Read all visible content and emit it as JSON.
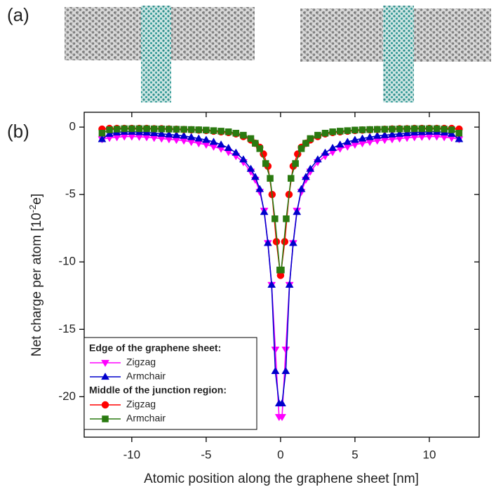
{
  "figure_labels": [
    "(a)",
    "(b)"
  ],
  "chart_data": {
    "type": "line",
    "xlabel": "Atomic position along the graphene sheet [nm]",
    "ylabel": {
      "before": "Net charge per atom [10",
      "sup": "-2",
      "after": "e]"
    },
    "xlim": [
      -13.2,
      13.35
    ],
    "ylim": [
      -23,
      1.1
    ],
    "xticks": [
      -10,
      -5,
      0,
      5,
      10
    ],
    "yticks": [
      0,
      -5,
      -10,
      -15,
      -20
    ],
    "grid": false,
    "legend": "lower left",
    "series_groups": [
      {
        "title": "Edge of the graphene sheet:",
        "series": [
          {
            "name": "Zigzag",
            "color": "#ff00ff",
            "marker": "triangle-down",
            "x": [
              -12,
              -11.5,
              -11,
              -10.5,
              -10,
              -9.5,
              -9,
              -8.5,
              -8,
              -7.5,
              -7,
              -6.5,
              -6,
              -5.5,
              -5,
              -4.5,
              -4,
              -3.5,
              -3,
              -2.5,
              -2,
              -1.7,
              -1.4,
              -1.1,
              -0.85,
              -0.6,
              -0.35,
              -0.1,
              0.1,
              0.35,
              0.6,
              0.85,
              1.1,
              1.4,
              1.7,
              2,
              2.5,
              3,
              3.5,
              4,
              4.5,
              5,
              5.5,
              6,
              6.5,
              7,
              7.5,
              8,
              8.5,
              9,
              9.5,
              10,
              10.5,
              11,
              11.5,
              12
            ],
            "values": [
              -0.9,
              -0.8,
              -0.75,
              -0.7,
              -0.7,
              -0.72,
              -0.75,
              -0.8,
              -0.85,
              -0.9,
              -0.95,
              -1.0,
              -1.1,
              -1.2,
              -1.3,
              -1.45,
              -1.6,
              -1.85,
              -2.15,
              -2.6,
              -3.3,
              -3.9,
              -4.8,
              -6.2,
              -8.6,
              -11.7,
              -16.5,
              -21.5,
              -21.5,
              -16.5,
              -11.7,
              -8.6,
              -6.2,
              -4.8,
              -3.9,
              -3.3,
              -2.6,
              -2.15,
              -1.85,
              -1.6,
              -1.45,
              -1.3,
              -1.2,
              -1.1,
              -1.0,
              -0.95,
              -0.9,
              -0.85,
              -0.8,
              -0.75,
              -0.72,
              -0.7,
              -0.7,
              -0.75,
              -0.8,
              -0.9
            ]
          },
          {
            "name": "Armchair",
            "color": "#0000cc",
            "marker": "triangle-up",
            "x": [
              -12,
              -11.5,
              -11,
              -10.5,
              -10,
              -9.5,
              -9,
              -8.5,
              -8,
              -7.5,
              -7,
              -6.5,
              -6,
              -5.5,
              -5,
              -4.5,
              -4,
              -3.5,
              -3,
              -2.5,
              -2,
              -1.7,
              -1.4,
              -1.1,
              -0.85,
              -0.6,
              -0.35,
              -0.1,
              0.1,
              0.35,
              0.6,
              0.85,
              1.1,
              1.4,
              1.7,
              2,
              2.5,
              3,
              3.5,
              4,
              4.5,
              5,
              5.5,
              6,
              6.5,
              7,
              7.5,
              8,
              8.5,
              9,
              9.5,
              10,
              10.5,
              11,
              11.5,
              12
            ],
            "values": [
              -0.9,
              -0.5,
              -0.4,
              -0.35,
              -0.35,
              -0.38,
              -0.4,
              -0.45,
              -0.5,
              -0.55,
              -0.6,
              -0.65,
              -0.75,
              -0.85,
              -0.95,
              -1.1,
              -1.3,
              -1.55,
              -1.9,
              -2.4,
              -3.1,
              -3.7,
              -4.6,
              -6.3,
              -8.6,
              -11.7,
              -18.1,
              -20.5,
              -20.5,
              -18.1,
              -11.7,
              -8.6,
              -6.3,
              -4.6,
              -3.7,
              -3.1,
              -2.4,
              -1.9,
              -1.55,
              -1.3,
              -1.1,
              -0.95,
              -0.85,
              -0.75,
              -0.65,
              -0.6,
              -0.55,
              -0.5,
              -0.45,
              -0.4,
              -0.38,
              -0.35,
              -0.35,
              -0.4,
              -0.5,
              -0.9
            ]
          }
        ]
      },
      {
        "title": "Middle of the junction region:",
        "series": [
          {
            "name": "Zigzag",
            "color": "#ff0000",
            "marker": "circle",
            "x": [
              -12,
              -11.5,
              -11,
              -10.5,
              -10,
              -9.5,
              -9,
              -8.5,
              -8,
              -7.5,
              -7,
              -6.5,
              -6,
              -5.5,
              -5,
              -4.5,
              -4,
              -3.5,
              -3,
              -2.5,
              -2,
              -1.7,
              -1.4,
              -1.15,
              -0.85,
              -0.57,
              -0.28,
              0,
              0.28,
              0.57,
              0.85,
              1.15,
              1.4,
              1.7,
              2,
              2.5,
              3,
              3.5,
              4,
              4.5,
              5,
              5.5,
              6,
              6.5,
              7,
              7.5,
              8,
              8.5,
              9,
              9.5,
              10,
              10.5,
              11,
              11.5,
              12
            ],
            "values": [
              -0.15,
              -0.1,
              -0.1,
              -0.1,
              -0.1,
              -0.1,
              -0.1,
              -0.12,
              -0.12,
              -0.14,
              -0.16,
              -0.18,
              -0.2,
              -0.22,
              -0.25,
              -0.3,
              -0.35,
              -0.4,
              -0.5,
              -0.7,
              -0.95,
              -1.2,
              -1.5,
              -2.0,
              -2.9,
              -5.0,
              -8.5,
              -11,
              -8.5,
              -5.0,
              -2.9,
              -2.0,
              -1.5,
              -1.2,
              -0.95,
              -0.7,
              -0.5,
              -0.4,
              -0.35,
              -0.3,
              -0.25,
              -0.22,
              -0.2,
              -0.18,
              -0.16,
              -0.14,
              -0.12,
              -0.12,
              -0.1,
              -0.1,
              -0.1,
              -0.1,
              -0.1,
              -0.1,
              -0.15
            ]
          },
          {
            "name": "Armchair",
            "color": "#2a7a10",
            "marker": "square",
            "x": [
              -12,
              -11.5,
              -11,
              -10.5,
              -10,
              -9.5,
              -9,
              -8.5,
              -8,
              -7.5,
              -7,
              -6.5,
              -6,
              -5.5,
              -5,
              -4.5,
              -4,
              -3.5,
              -3,
              -2.5,
              -2,
              -1.7,
              -1.4,
              -1.0,
              -0.7,
              -0.38,
              -0.05,
              0.05,
              0.38,
              0.7,
              1.0,
              1.4,
              1.7,
              2,
              2.5,
              3,
              3.5,
              4,
              4.5,
              5,
              5.5,
              6,
              6.5,
              7,
              7.5,
              8,
              8.5,
              9,
              9.5,
              10,
              10.5,
              11,
              11.5,
              12
            ],
            "values": [
              -0.45,
              -0.2,
              -0.15,
              -0.12,
              -0.12,
              -0.12,
              -0.12,
              -0.13,
              -0.14,
              -0.15,
              -0.16,
              -0.17,
              -0.18,
              -0.2,
              -0.22,
              -0.26,
              -0.3,
              -0.35,
              -0.45,
              -0.6,
              -0.85,
              -1.2,
              -1.6,
              -2.7,
              -3.8,
              -6.8,
              -10.6,
              -10.6,
              -6.8,
              -3.8,
              -2.7,
              -1.6,
              -1.2,
              -0.85,
              -0.6,
              -0.45,
              -0.35,
              -0.3,
              -0.26,
              -0.22,
              -0.2,
              -0.18,
              -0.17,
              -0.16,
              -0.15,
              -0.14,
              -0.13,
              -0.12,
              -0.12,
              -0.12,
              -0.12,
              -0.15,
              -0.2,
              -0.45
            ]
          }
        ]
      }
    ]
  }
}
